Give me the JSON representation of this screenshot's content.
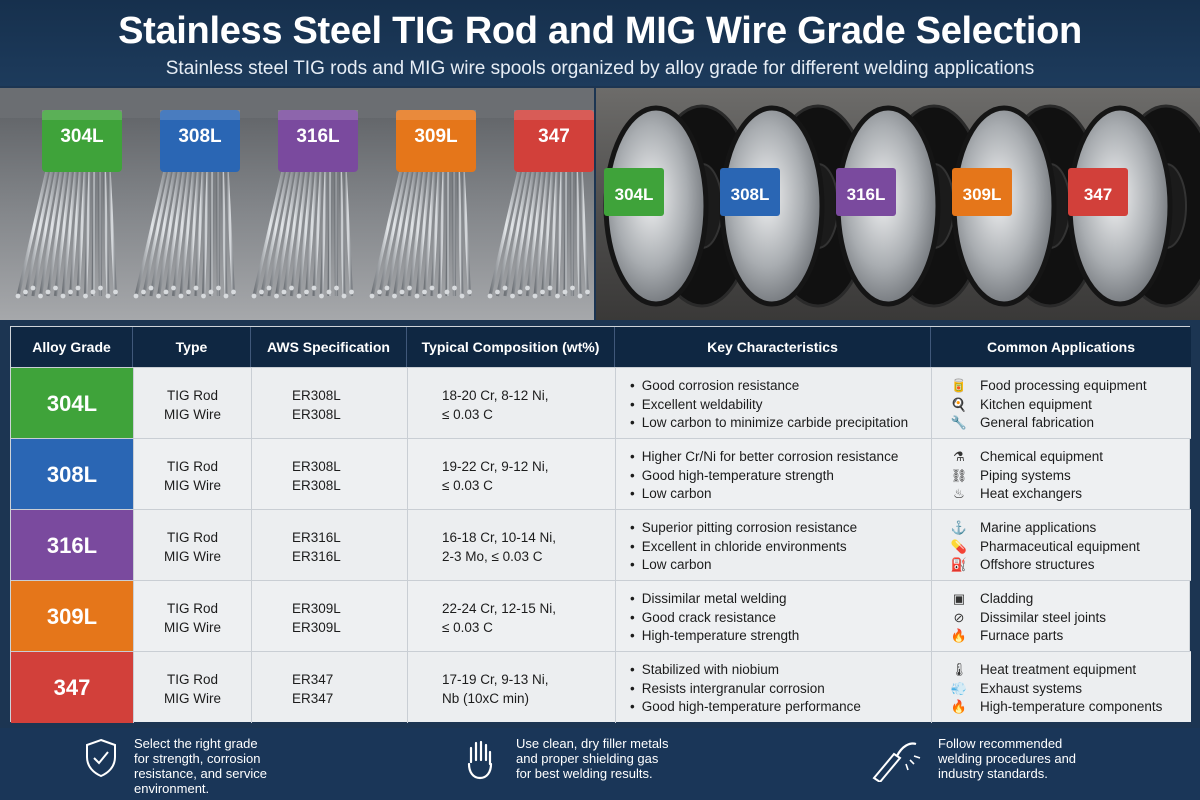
{
  "header": {
    "title": "Stainless Steel TIG Rod and MIG Wire Grade Selection",
    "subtitle": "Stainless steel TIG rods and MIG wire spools organized by alloy grade for different welding applications"
  },
  "photos": {
    "rod_bundles": [
      {
        "label": "304L",
        "color": "#3fa33a"
      },
      {
        "label": "308L",
        "color": "#2a66b4"
      },
      {
        "label": "316L",
        "color": "#7a4a9e"
      },
      {
        "label": "309L",
        "color": "#e5761a"
      },
      {
        "label": "347",
        "color": "#d2403a"
      }
    ],
    "wire_spools": [
      {
        "label": "304L",
        "color": "#3fa33a"
      },
      {
        "label": "308L",
        "color": "#2a66b4"
      },
      {
        "label": "316L",
        "color": "#7a4a9e"
      },
      {
        "label": "309L",
        "color": "#e5761a"
      },
      {
        "label": "347",
        "color": "#d2403a"
      }
    ]
  },
  "table": {
    "headers": [
      "Alloy Grade",
      "Type",
      "AWS Specification",
      "Typical Composition (wt%)",
      "Key Characteristics",
      "Common Applications"
    ],
    "rows": [
      {
        "grade": "304L",
        "color": "#3fa33a",
        "type": [
          "TIG Rod",
          "MIG Wire"
        ],
        "aws": [
          "ER308L",
          "ER308L"
        ],
        "composition": [
          "18-20 Cr, 8-12 Ni,",
          "≤ 0.03 C"
        ],
        "characteristics": [
          "Good corrosion resistance",
          "Excellent weldability",
          "Low carbon to minimize carbide precipitation"
        ],
        "applications": [
          {
            "icon": "food-icon",
            "glyph": "🥫",
            "text": "Food processing equipment"
          },
          {
            "icon": "kitchen-icon",
            "glyph": "🍳",
            "text": "Kitchen equipment"
          },
          {
            "icon": "fabrication-icon",
            "glyph": "🔧",
            "text": "General fabrication"
          }
        ]
      },
      {
        "grade": "308L",
        "color": "#2a66b4",
        "type": [
          "TIG Rod",
          "MIG Wire"
        ],
        "aws": [
          "ER308L",
          "ER308L"
        ],
        "composition": [
          "19-22 Cr, 9-12 Ni,",
          "≤ 0.03 C"
        ],
        "characteristics": [
          "Higher Cr/Ni for better corrosion resistance",
          "Good high-temperature strength",
          "Low carbon"
        ],
        "applications": [
          {
            "icon": "flask-icon",
            "glyph": "⚗",
            "text": "Chemical equipment"
          },
          {
            "icon": "piping-icon",
            "glyph": "⛓",
            "text": "Piping systems"
          },
          {
            "icon": "heat-exchanger-icon",
            "glyph": "♨",
            "text": "Heat exchangers"
          }
        ]
      },
      {
        "grade": "316L",
        "color": "#7a4a9e",
        "type": [
          "TIG Rod",
          "MIG Wire"
        ],
        "aws": [
          "ER316L",
          "ER316L"
        ],
        "composition": [
          "16-18 Cr, 10-14 Ni,",
          "2-3 Mo, ≤ 0.03 C"
        ],
        "characteristics": [
          "Superior pitting corrosion resistance",
          "Excellent in chloride environments",
          "Low carbon"
        ],
        "applications": [
          {
            "icon": "anchor-icon",
            "glyph": "⚓",
            "text": "Marine applications"
          },
          {
            "icon": "capsule-icon",
            "glyph": "💊",
            "text": "Pharmaceutical equipment"
          },
          {
            "icon": "offshore-icon",
            "glyph": "⛽",
            "text": "Offshore structures"
          }
        ]
      },
      {
        "grade": "309L",
        "color": "#e5761a",
        "type": [
          "TIG Rod",
          "MIG Wire"
        ],
        "aws": [
          "ER309L",
          "ER309L"
        ],
        "composition": [
          "22-24 Cr, 12-15 Ni,",
          "≤ 0.03 C"
        ],
        "characteristics": [
          "Dissimilar metal welding",
          "Good crack resistance",
          "High-temperature strength"
        ],
        "applications": [
          {
            "icon": "cladding-icon",
            "glyph": "▣",
            "text": "Cladding"
          },
          {
            "icon": "joint-icon",
            "glyph": "⊘",
            "text": "Dissimilar steel joints"
          },
          {
            "icon": "furnace-icon",
            "glyph": "🔥",
            "text": "Furnace parts"
          }
        ]
      },
      {
        "grade": "347",
        "color": "#d2403a",
        "type": [
          "TIG Rod",
          "MIG Wire"
        ],
        "aws": [
          "ER347",
          "ER347"
        ],
        "composition": [
          "17-19 Cr, 9-13 Ni,",
          "Nb (10xC min)"
        ],
        "characteristics": [
          "Stabilized with niobium",
          "Resists intergranular corrosion",
          "Good high-temperature performance"
        ],
        "applications": [
          {
            "icon": "thermometer-icon",
            "glyph": "🌡",
            "text": "Heat treatment equipment"
          },
          {
            "icon": "exhaust-icon",
            "glyph": "💨",
            "text": "Exhaust systems"
          },
          {
            "icon": "flame-icon",
            "glyph": "🔥",
            "text": "High-temperature components"
          }
        ]
      }
    ]
  },
  "footer": {
    "tips": [
      {
        "icon": "shield-check-icon",
        "lines": [
          "Select the right grade",
          "for strength, corrosion",
          "resistance, and service",
          "environment."
        ]
      },
      {
        "icon": "glove-icon",
        "lines": [
          "Use clean, dry filler metals",
          "and proper shielding gas",
          "for best welding results."
        ]
      },
      {
        "icon": "welding-torch-icon",
        "lines": [
          "Follow recommended",
          "welding procedures and",
          "industry standards."
        ]
      }
    ]
  }
}
